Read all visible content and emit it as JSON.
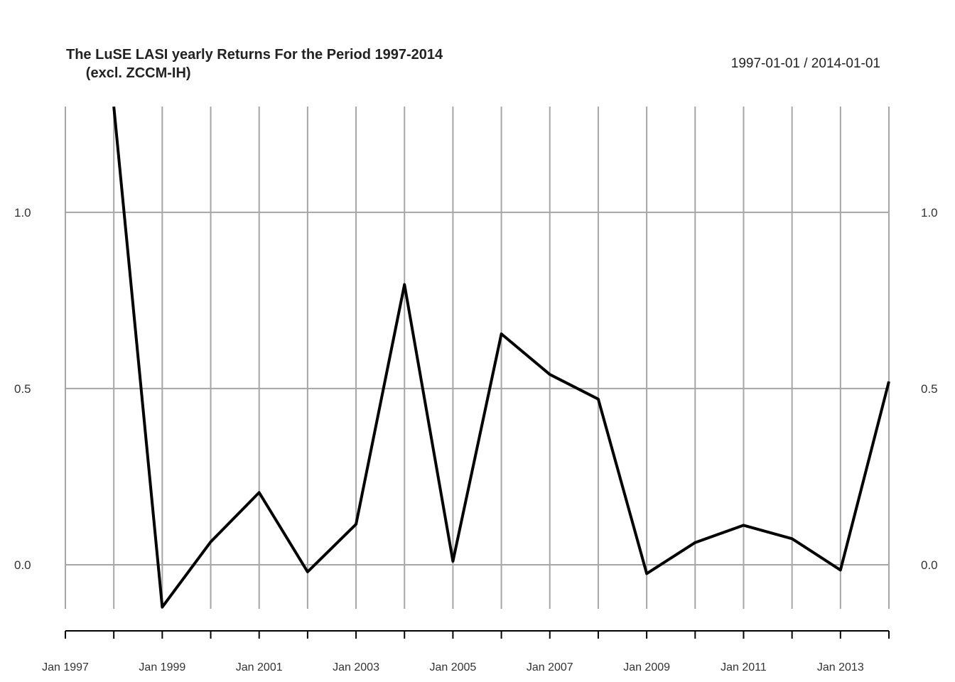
{
  "chart_data": {
    "type": "line",
    "title": "The LuSE LASI yearly Returns For the Period 1997-2014\n     (excl. ZCCM-IH)",
    "date_range": "1997-01-01 / 2014-01-01",
    "x": [
      "1997-01-01",
      "1998-01-01",
      "1999-01-01",
      "2000-01-01",
      "2001-01-01",
      "2002-01-01",
      "2003-01-01",
      "2004-01-01",
      "2005-01-01",
      "2006-01-01",
      "2007-01-01",
      "2008-01-01",
      "2009-01-01",
      "2010-01-01",
      "2011-01-01",
      "2012-01-01",
      "2013-01-01",
      "2014-01-01"
    ],
    "x_tick_labels": [
      "Jan 1997",
      "Jan 1999",
      "Jan 2001",
      "Jan 2003",
      "Jan 2005",
      "Jan 2007",
      "Jan 2009",
      "Jan 2011",
      "Jan 2013"
    ],
    "series": [
      {
        "values": [
          null,
          1.3,
          -0.12,
          0.065,
          0.205,
          -0.02,
          0.115,
          0.795,
          0.01,
          0.655,
          0.54,
          0.47,
          -0.025,
          0.063,
          0.112,
          0.074,
          -0.015,
          0.52
        ],
        "color": "#000000"
      }
    ],
    "y_ticks": [
      0.0,
      0.5,
      1.0
    ],
    "y_tick_labels": [
      "0.0",
      "0.5",
      "1.0"
    ],
    "ylim": [
      -0.125,
      1.3
    ],
    "grid": true,
    "y_axis_labels_both_sides": true
  }
}
